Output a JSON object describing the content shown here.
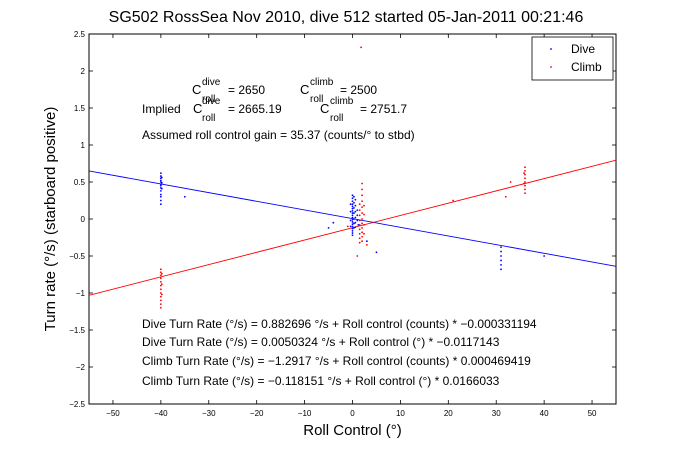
{
  "chart_data": {
    "type": "scatter",
    "title": "SG502 RossSea Nov 2010, dive 512 started 05-Jan-2011 00:21:46",
    "xlabel": "Roll Control (°)",
    "ylabel": "Turn rate (°/s) (starboard positive)",
    "xlim": [
      -55,
      55
    ],
    "ylim": [
      -2.5,
      2.5
    ],
    "x_ticks": [
      -50,
      -40,
      -30,
      -20,
      -10,
      0,
      10,
      20,
      30,
      40,
      50
    ],
    "x_tick_labels": [
      "−50",
      "−40",
      "−30",
      "−20",
      "−10",
      "0",
      "10",
      "20",
      "30",
      "40",
      "50"
    ],
    "y_ticks": [
      -2.5,
      -2,
      -1.5,
      -1,
      -0.5,
      0,
      0.5,
      1,
      1.5,
      2,
      2.5
    ],
    "y_tick_labels": [
      "−2.5",
      "−2",
      "−1.5",
      "−1",
      "−0.5",
      "0",
      "0.5",
      "1",
      "1.5",
      "2",
      "2.5"
    ],
    "grid": false,
    "legend_position": "top-right",
    "series": [
      {
        "name": "Dive",
        "color": "#0000ff",
        "points": [
          [
            -40,
            0.62
          ],
          [
            -40,
            0.58
          ],
          [
            -40,
            0.55
          ],
          [
            -40,
            0.52
          ],
          [
            -40,
            0.5
          ],
          [
            -40,
            0.47
          ],
          [
            -40,
            0.45
          ],
          [
            -40,
            0.42
          ],
          [
            -40,
            0.38
          ],
          [
            -40,
            0.33
          ],
          [
            -40,
            0.3
          ],
          [
            -40,
            0.25
          ],
          [
            -40,
            0.2
          ],
          [
            -39.8,
            0.56
          ],
          [
            -39.8,
            0.49
          ],
          [
            -39.8,
            0.41
          ],
          [
            -35,
            0.3
          ],
          [
            -5,
            -0.12
          ],
          [
            -4,
            -0.05
          ],
          [
            0,
            0.32
          ],
          [
            0,
            0.28
          ],
          [
            0,
            0.24
          ],
          [
            0,
            0.2
          ],
          [
            0,
            0.17
          ],
          [
            0,
            0.14
          ],
          [
            0,
            0.11
          ],
          [
            0,
            0.08
          ],
          [
            0,
            0.05
          ],
          [
            0,
            0.02
          ],
          [
            0,
            -0.01
          ],
          [
            0,
            -0.04
          ],
          [
            0,
            -0.07
          ],
          [
            0,
            -0.1
          ],
          [
            0,
            -0.13
          ],
          [
            0,
            -0.16
          ],
          [
            0,
            -0.19
          ],
          [
            0,
            -0.22
          ],
          [
            0.3,
            0.3
          ],
          [
            0.3,
            0.22
          ],
          [
            0.3,
            0.15
          ],
          [
            0.3,
            0.08
          ],
          [
            0.3,
            0.0
          ],
          [
            0.3,
            -0.06
          ],
          [
            0.3,
            -0.12
          ],
          [
            0.6,
            0.26
          ],
          [
            0.6,
            0.18
          ],
          [
            0.6,
            0.1
          ],
          [
            0.6,
            0.02
          ],
          [
            0.6,
            -0.05
          ],
          [
            0.6,
            -0.11
          ],
          [
            1.0,
            0.12
          ],
          [
            1.0,
            0.05
          ],
          [
            1.0,
            -0.02
          ],
          [
            1.2,
            -0.08
          ],
          [
            -0.4,
            0.2
          ],
          [
            -0.4,
            0.1
          ],
          [
            -0.4,
            -0.02
          ],
          [
            -0.4,
            -0.1
          ],
          [
            3,
            -0.3
          ],
          [
            5,
            -0.45
          ],
          [
            31,
            -0.38
          ],
          [
            31,
            -0.44
          ],
          [
            31,
            -0.5
          ],
          [
            31,
            -0.56
          ],
          [
            31,
            -0.62
          ],
          [
            31,
            -0.68
          ],
          [
            40,
            -0.5
          ]
        ]
      },
      {
        "name": "Climb",
        "color": "#ff0000",
        "points": [
          [
            -40,
            -0.68
          ],
          [
            -40,
            -0.72
          ],
          [
            -40,
            -0.76
          ],
          [
            -40,
            -0.8
          ],
          [
            -40,
            -0.85
          ],
          [
            -40,
            -0.9
          ],
          [
            -40,
            -0.95
          ],
          [
            -40,
            -1.0
          ],
          [
            -40,
            -1.05
          ],
          [
            -40,
            -1.1
          ],
          [
            -40,
            -1.15
          ],
          [
            -40,
            -1.2
          ],
          [
            -39.8,
            -0.74
          ],
          [
            -39.8,
            -0.88
          ],
          [
            -39.8,
            -1.02
          ],
          [
            1.5,
            0.2
          ],
          [
            1.5,
            0.12
          ],
          [
            1.5,
            0.05
          ],
          [
            1.5,
            -0.02
          ],
          [
            1.5,
            -0.08
          ],
          [
            1.5,
            -0.14
          ],
          [
            1.5,
            -0.2
          ],
          [
            1.5,
            -0.26
          ],
          [
            1.5,
            -0.32
          ],
          [
            2.0,
            0.48
          ],
          [
            2.0,
            0.4
          ],
          [
            2.0,
            0.32
          ],
          [
            2.0,
            0.24
          ],
          [
            2.0,
            0.16
          ],
          [
            2.0,
            0.08
          ],
          [
            2.0,
            0.0
          ],
          [
            2.0,
            -0.06
          ],
          [
            2.0,
            -0.12
          ],
          [
            2.0,
            -0.18
          ],
          [
            2.0,
            -0.24
          ],
          [
            2.0,
            -0.3
          ],
          [
            2.4,
            0.18
          ],
          [
            2.4,
            0.06
          ],
          [
            2.4,
            -0.08
          ],
          [
            2.4,
            -0.2
          ],
          [
            1.8,
            2.32
          ],
          [
            1,
            -0.5
          ],
          [
            3,
            -0.35
          ],
          [
            -1,
            -0.1
          ],
          [
            32,
            0.3
          ],
          [
            33,
            0.5
          ],
          [
            36,
            0.7
          ],
          [
            36,
            0.65
          ],
          [
            36,
            0.6
          ],
          [
            36,
            0.55
          ],
          [
            36,
            0.5
          ],
          [
            36,
            0.45
          ],
          [
            36,
            0.4
          ],
          [
            36,
            0.35
          ],
          [
            35.8,
            0.62
          ],
          [
            35.8,
            0.48
          ],
          [
            21,
            0.25
          ]
        ]
      }
    ],
    "fit_lines": [
      {
        "series": "Dive",
        "color": "#0000ff",
        "intercept": 0.0050324,
        "slope": -0.0117143
      },
      {
        "series": "Climb",
        "color": "#ff0000",
        "intercept": -0.118151,
        "slope": 0.0166033
      }
    ],
    "annotations": {
      "c_dive_value": "= 2650",
      "c_climb_value": "= 2500",
      "implied_label": "Implied",
      "implied_dive_value": "= 2665.19",
      "implied_climb_value": "= 2751.7",
      "gain_text": "Assumed roll control gain = 35.37 (counts/° to stbd)",
      "eq_lines": [
        "Dive Turn Rate (°/s) = 0.882696 °/s + Roll control (counts) * −0.000331194",
        "Dive Turn Rate (°/s) = 0.0050324 °/s + Roll control (°) * −0.0117143",
        "Climb Turn Rate (°/s) = −1.2917 °/s + Roll control (counts) * 0.000469419",
        "Climb Turn Rate (°/s) = −0.118151 °/s + Roll control (°) * 0.0166033"
      ]
    }
  },
  "symbols": {
    "c": "C",
    "dive": "dive",
    "climb": "climb",
    "roll": "roll"
  }
}
